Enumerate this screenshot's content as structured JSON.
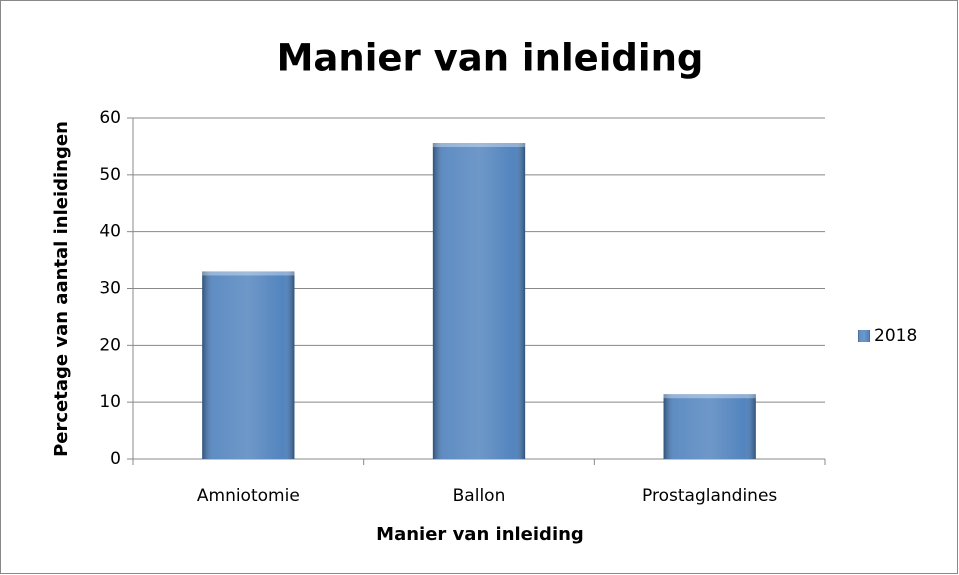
{
  "chart_data": {
    "type": "bar",
    "title": "Manier van inleiding",
    "x_label": "Manier van inleiding",
    "y_label": "Percetage van aantal inleidingen",
    "categories": [
      "Amniotomie",
      "Ballon",
      "Prostaglandines"
    ],
    "series": [
      {
        "name": "2018",
        "color": "#4a7ebb",
        "values": [
          33,
          55.6,
          11.4
        ]
      }
    ],
    "ylim": [
      0,
      60
    ],
    "yticks": [
      0,
      10,
      20,
      30,
      40,
      50,
      60
    ],
    "grid": true,
    "legend": "right"
  }
}
